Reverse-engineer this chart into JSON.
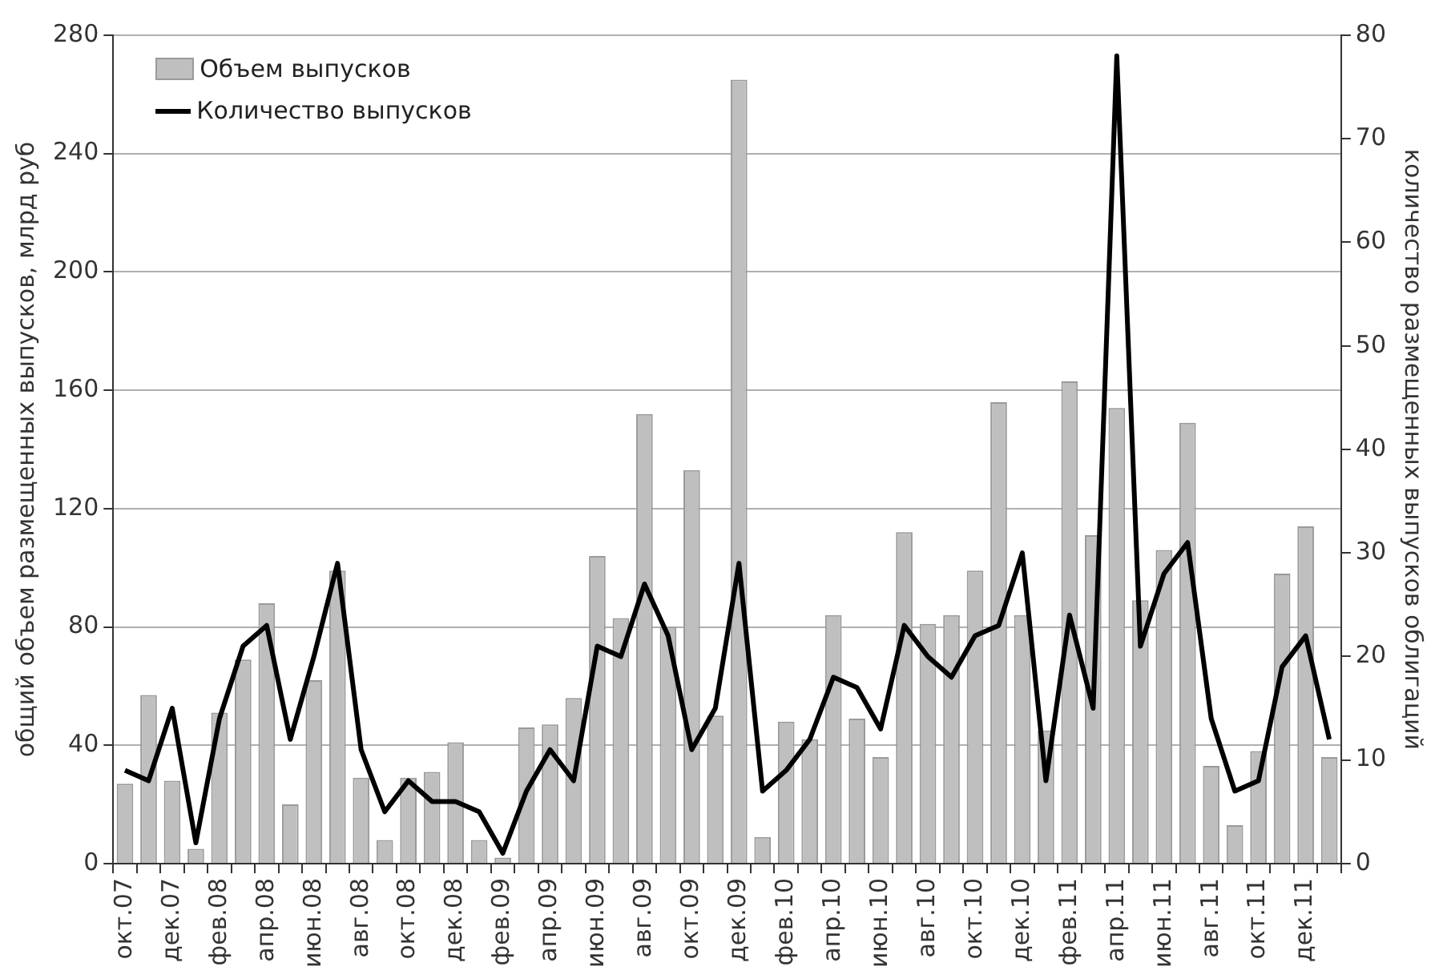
{
  "chart_data": {
    "type": "bar",
    "ylabel": "общий объем размещенных выпусков, млрд руб",
    "y2label": "количество размещенных выпусков облигаций",
    "categories": [
      "окт.07",
      null,
      "дек.07",
      null,
      "фев.08",
      null,
      "апр.08",
      null,
      "июн.08",
      null,
      "авг.08",
      null,
      "окт.08",
      null,
      "дек.08",
      null,
      "фев.09",
      null,
      "апр.09",
      null,
      "июн.09",
      null,
      "авг.09",
      null,
      "окт.09",
      null,
      "дек.09",
      null,
      "фев.10",
      null,
      "апр.10",
      null,
      "июн.10",
      null,
      "авг.10",
      null,
      "окт.10",
      null,
      "дек.10",
      null,
      "фев.11",
      null,
      "апр.11",
      null,
      "июн.11",
      null,
      "авг.11",
      null,
      "окт.11",
      null,
      "дек.11",
      null
    ],
    "series": [
      {
        "name": "Объем выпусков",
        "color": "#bfbfbf",
        "values": [
          27,
          57,
          28,
          5,
          51,
          69,
          88,
          20,
          62,
          99,
          29,
          8,
          29,
          31,
          41,
          8,
          2,
          46,
          47,
          56,
          104,
          83,
          152,
          80,
          133,
          50,
          265,
          9,
          48,
          42,
          84,
          49,
          36,
          112,
          81,
          84,
          99,
          156,
          84,
          45,
          163,
          111,
          154,
          89,
          106,
          149,
          33,
          13,
          38,
          98,
          114,
          36
        ]
      },
      {
        "name": "Количество выпусков",
        "type": "line",
        "axis": "y2",
        "color": "#000000",
        "values": [
          9,
          8,
          15,
          2,
          14,
          21,
          23,
          12,
          20,
          29,
          11,
          5,
          8,
          6,
          6,
          5,
          1,
          7,
          11,
          8,
          21,
          20,
          27,
          22,
          11,
          15,
          29,
          7,
          9,
          12,
          18,
          17,
          13,
          23,
          20,
          18,
          22,
          23,
          30,
          8,
          24,
          15,
          78,
          21,
          28,
          31,
          14,
          7,
          8,
          19,
          22,
          12
        ]
      }
    ],
    "ylim": [
      0,
      280
    ],
    "yticks": [
      0,
      40,
      80,
      120,
      160,
      200,
      240,
      280
    ],
    "y2lim": [
      0,
      80
    ],
    "y2ticks": [
      0,
      10,
      20,
      30,
      40,
      50,
      60,
      70,
      80
    ],
    "grid": "y",
    "legend": "top left",
    "marker": "none",
    "line_style": "solid"
  }
}
